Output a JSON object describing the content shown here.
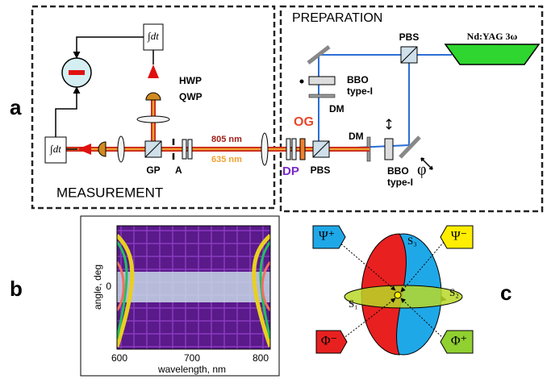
{
  "panel_labels": [
    "a",
    "b",
    "c"
  ],
  "panel_a": {
    "measurement_title": "MEASUREMENT",
    "preparation_title": "PREPARATION",
    "pbs_top": "PBS",
    "laser": "Nd:YAG 3ω",
    "bbo_top": [
      "BBO",
      "type-I"
    ],
    "dm_top": "DM",
    "og": "OG",
    "dm_right": "DM",
    "bbo_right": [
      "BBO",
      "type-I"
    ],
    "phi": "φ",
    "dp": "DP",
    "pbs_bottom": "PBS",
    "wavelength_red": "805 nm",
    "wavelength_orange": "635 nm",
    "hwp": "HWP",
    "qwp": "QWP",
    "gp": "GP",
    "aperture": "A",
    "integrator_top": "∫dt",
    "integrator_left": "∫dt"
  },
  "panel_b": {
    "y_label": "angle, deg",
    "x_label": "wavelength, nm",
    "xticks": [
      600,
      700,
      800
    ],
    "yticks": [
      0
    ]
  },
  "panel_c": {
    "psi_plus": "Ψ⁺",
    "psi_minus": "Ψ⁻",
    "phi_minus": "Φ⁻",
    "phi_plus": "Φ⁺",
    "s1": "S₁",
    "s2": "S₂",
    "s3": "S₃"
  }
}
